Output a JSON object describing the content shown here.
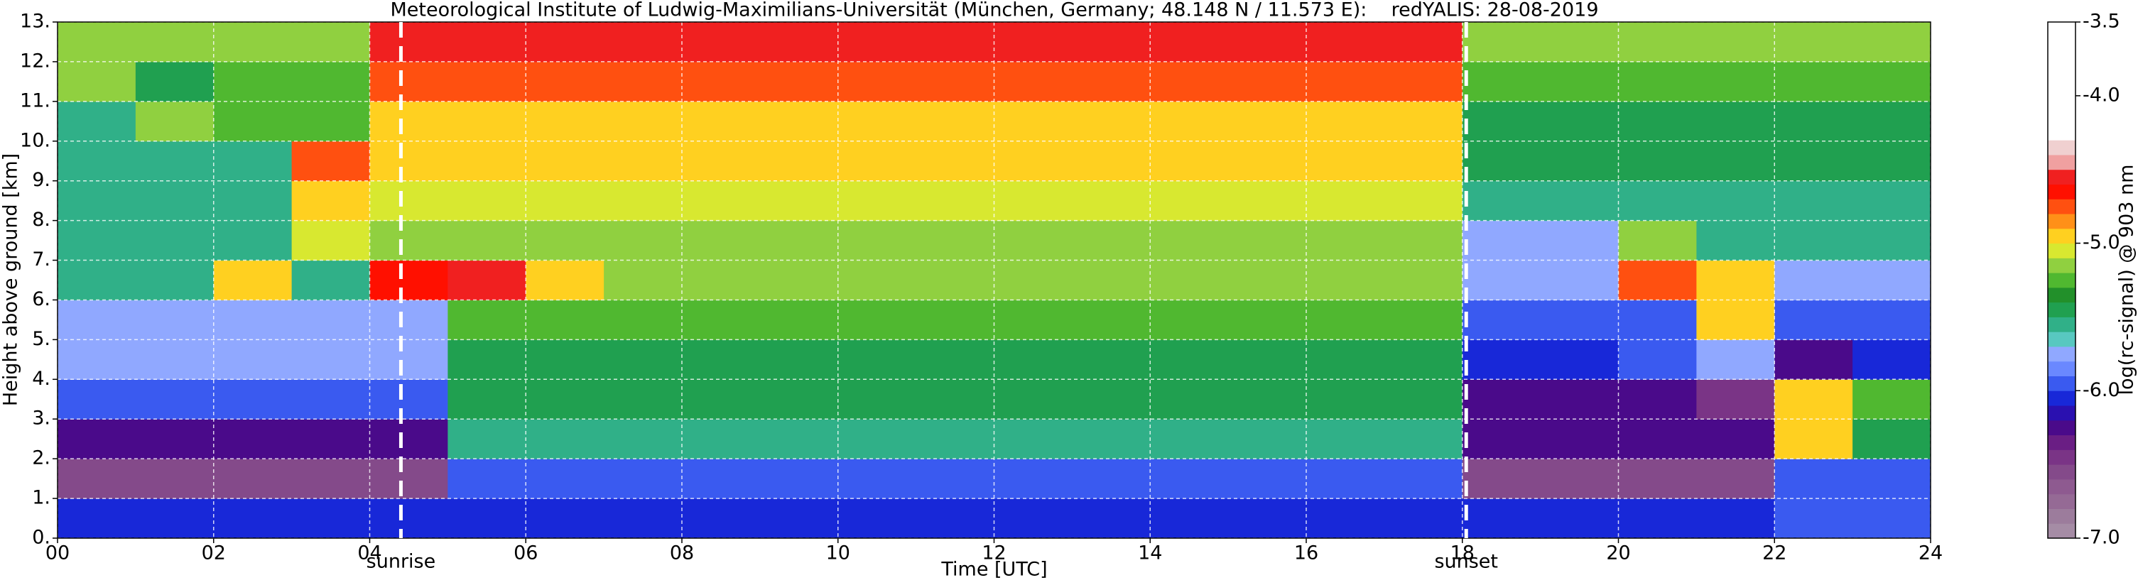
{
  "chart_data": {
    "type": "heatmap",
    "title": "Meteorological Institute of Ludwig-Maximilians-Universität (München, Germany; 48.148 N / 11.573 E):    redYALIS: 28-08-2019",
    "x_label": "Time [UTC]",
    "y_label": "Height above ground [km]",
    "colorbar_label": "log(rc-signal) @ 903 nm",
    "xlim": [
      0,
      24
    ],
    "xticks": [
      {
        "value": 0,
        "label": "00"
      },
      {
        "value": 2,
        "label": "02"
      },
      {
        "value": 4,
        "label": "04"
      },
      {
        "value": 6,
        "label": "06"
      },
      {
        "value": 8,
        "label": "08"
      },
      {
        "value": 10,
        "label": "10"
      },
      {
        "value": 12,
        "label": "12"
      },
      {
        "value": 14,
        "label": "14"
      },
      {
        "value": 16,
        "label": "16"
      },
      {
        "value": 18,
        "label": "18"
      },
      {
        "value": 20,
        "label": "20"
      },
      {
        "value": 22,
        "label": "22"
      },
      {
        "value": 24,
        "label": "24"
      }
    ],
    "ylim": [
      0,
      13
    ],
    "yticks": [
      {
        "value": 0,
        "label": "0."
      },
      {
        "value": 1,
        "label": "1."
      },
      {
        "value": 2,
        "label": "2."
      },
      {
        "value": 3,
        "label": "3."
      },
      {
        "value": 4,
        "label": "4."
      },
      {
        "value": 5,
        "label": "5."
      },
      {
        "value": 6,
        "label": "6."
      },
      {
        "value": 7,
        "label": "7."
      },
      {
        "value": 8,
        "label": "8."
      },
      {
        "value": 9,
        "label": "9."
      },
      {
        "value": 10,
        "label": "10."
      },
      {
        "value": 11,
        "label": "11."
      },
      {
        "value": 12,
        "label": "12."
      },
      {
        "value": 13,
        "label": "13."
      }
    ],
    "grid": true,
    "markers": [
      {
        "label": "sunrise",
        "x": 4.4
      },
      {
        "label": "sunset",
        "x": 18.05
      }
    ],
    "zlim": [
      -7.0,
      -3.5
    ],
    "zticks": [
      {
        "value": -7.0,
        "label": "-7.0"
      },
      {
        "value": -6.0,
        "label": "-6.0"
      },
      {
        "value": -5.0,
        "label": "-5.0"
      },
      {
        "value": -4.0,
        "label": "-4.0"
      },
      {
        "value": -3.5,
        "label": "-3.5"
      }
    ],
    "colors": [
      "#a58ca5",
      "#9c7c9c",
      "#956a95",
      "#8e5a90",
      "#844a8a",
      "#7a3486",
      "#6a1e84",
      "#4a0a8a",
      "#2a10b0",
      "#1828d8",
      "#3a5af0",
      "#6a88ff",
      "#90a8ff",
      "#58c8c0",
      "#30b088",
      "#20a050",
      "#22902a",
      "#50b830",
      "#90d040",
      "#d8e830",
      "#ffd020",
      "#ff9018",
      "#ff5010",
      "#ff1000",
      "#f02020",
      "#f0a0a0",
      "#f0d0d0",
      "#ffffff",
      "#ffffff",
      "#ffffff",
      "#ffffff",
      "#ffffff",
      "#ffffff",
      "#ffffff",
      "#ffffff"
    ],
    "xbins": [
      0,
      1,
      2,
      3,
      4,
      5,
      6,
      7,
      8,
      9,
      10,
      11,
      12,
      13,
      14,
      15,
      16,
      17,
      18,
      19,
      20,
      21,
      22,
      23,
      24
    ],
    "ybins": [
      0,
      1,
      2,
      3,
      4,
      5,
      6,
      7,
      8,
      9,
      10,
      11,
      12,
      13
    ],
    "z": [
      [
        -6.1,
        -6.1,
        -6.1,
        -6.1,
        -6.1,
        -6.1,
        -6.1,
        -6.1,
        -6.1,
        -6.1,
        -6.1,
        -6.1,
        -6.1,
        -6.1,
        -6.1,
        -6.1,
        -6.1,
        -6.1,
        -6.1,
        -6.1,
        -6.1,
        -6.1,
        -6.0,
        -6.0
      ],
      [
        -6.6,
        -6.6,
        -6.6,
        -6.6,
        -6.6,
        -5.9,
        -5.9,
        -5.9,
        -5.9,
        -5.9,
        -5.9,
        -5.9,
        -5.9,
        -5.9,
        -5.9,
        -5.9,
        -5.9,
        -5.9,
        -6.6,
        -6.6,
        -6.6,
        -6.6,
        -6.0,
        -6.0
      ],
      [
        -6.2,
        -6.2,
        -6.2,
        -6.2,
        -6.2,
        -5.6,
        -5.6,
        -5.6,
        -5.6,
        -5.6,
        -5.6,
        -5.6,
        -5.6,
        -5.6,
        -5.6,
        -5.6,
        -5.6,
        -5.6,
        -6.3,
        -6.3,
        -6.3,
        -6.3,
        -5.0,
        -5.5
      ],
      [
        -5.9,
        -5.9,
        -5.9,
        -5.9,
        -5.9,
        -5.5,
        -5.5,
        -5.5,
        -5.5,
        -5.5,
        -5.5,
        -5.5,
        -5.5,
        -5.5,
        -5.5,
        -5.5,
        -5.5,
        -5.5,
        -6.2,
        -6.2,
        -6.2,
        -6.4,
        -5.0,
        -5.3
      ],
      [
        -5.8,
        -5.8,
        -5.8,
        -5.8,
        -5.8,
        -5.4,
        -5.4,
        -5.4,
        -5.4,
        -5.4,
        -5.4,
        -5.4,
        -5.4,
        -5.4,
        -5.4,
        -5.4,
        -5.4,
        -5.4,
        -6.1,
        -6.1,
        -6.0,
        -5.8,
        -6.2,
        -6.1
      ],
      [
        -5.7,
        -5.7,
        -5.7,
        -5.7,
        -5.7,
        -5.3,
        -5.3,
        -5.3,
        -5.3,
        -5.3,
        -5.3,
        -5.3,
        -5.3,
        -5.3,
        -5.3,
        -5.3,
        -5.3,
        -5.3,
        -5.9,
        -5.9,
        -5.9,
        -4.9,
        -6.0,
        -6.0
      ],
      [
        -5.6,
        -5.6,
        -4.9,
        -5.6,
        -4.7,
        -4.6,
        -5.0,
        -5.2,
        -5.2,
        -5.2,
        -5.2,
        -5.2,
        -5.2,
        -5.2,
        -5.2,
        -5.2,
        -5.2,
        -5.2,
        -5.8,
        -5.8,
        -4.8,
        -5.0,
        -5.7,
        -5.7
      ],
      [
        -5.6,
        -5.6,
        -5.6,
        -5.1,
        -5.2,
        -5.2,
        -5.2,
        -5.2,
        -5.2,
        -5.2,
        -5.2,
        -5.2,
        -5.2,
        -5.2,
        -5.2,
        -5.2,
        -5.2,
        -5.2,
        -5.7,
        -5.7,
        -5.2,
        -5.6,
        -5.6,
        -5.6
      ],
      [
        -5.6,
        -5.6,
        -5.6,
        -4.9,
        -5.1,
        -5.1,
        -5.1,
        -5.1,
        -5.1,
        -5.1,
        -5.1,
        -5.1,
        -5.1,
        -5.1,
        -5.1,
        -5.1,
        -5.1,
        -5.1,
        -5.6,
        -5.6,
        -5.6,
        -5.6,
        -5.6,
        -5.6
      ],
      [
        -5.6,
        -5.6,
        -5.6,
        -4.8,
        -5.0,
        -5.0,
        -5.0,
        -5.0,
        -5.0,
        -5.0,
        -5.0,
        -5.0,
        -5.0,
        -5.0,
        -5.0,
        -5.0,
        -5.0,
        -5.0,
        -5.5,
        -5.5,
        -5.5,
        -5.5,
        -5.5,
        -5.5
      ],
      [
        -5.6,
        -5.2,
        -5.3,
        -5.3,
        -4.9,
        -4.9,
        -4.9,
        -4.9,
        -4.9,
        -4.9,
        -4.9,
        -4.9,
        -4.9,
        -4.9,
        -4.9,
        -4.9,
        -4.9,
        -4.9,
        -5.4,
        -5.4,
        -5.4,
        -5.4,
        -5.4,
        -5.4
      ],
      [
        -5.2,
        -5.4,
        -5.3,
        -5.3,
        -4.8,
        -4.8,
        -4.8,
        -4.8,
        -4.8,
        -4.8,
        -4.8,
        -4.8,
        -4.8,
        -4.8,
        -4.8,
        -4.8,
        -4.8,
        -4.8,
        -5.3,
        -5.3,
        -5.3,
        -5.3,
        -5.3,
        -5.3
      ],
      [
        -5.2,
        -5.2,
        -5.2,
        -5.2,
        -4.6,
        -4.6,
        -4.6,
        -4.6,
        -4.6,
        -4.6,
        -4.6,
        -4.6,
        -4.6,
        -4.6,
        -4.6,
        -4.6,
        -4.6,
        -4.6,
        -5.2,
        -5.2,
        -5.2,
        -5.2,
        -5.2,
        -5.2
      ]
    ]
  }
}
